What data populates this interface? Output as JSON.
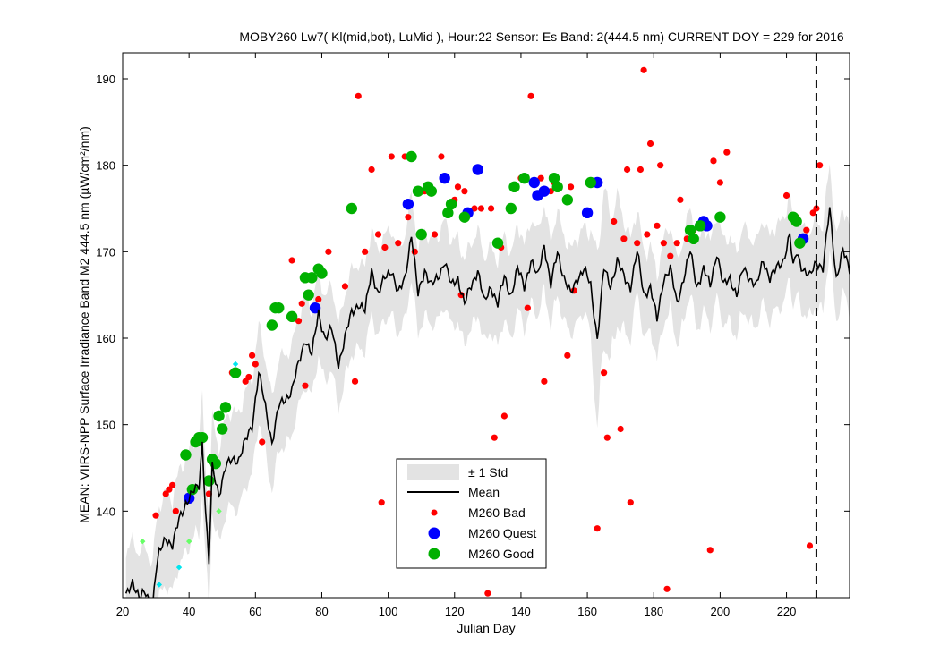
{
  "chart_data": {
    "type": "scatter",
    "title": "MOBY260   Lw7( Kl(mid,bot), LuMid ),   Hour:22 Sensor: Es Band: 2(444.5 nm)   CURRENT DOY = 229 for 2016",
    "xlabel": "Julian Day",
    "ylabel": "MEAN: VIIRS-NPP Surface Irradiance Band M2 444.5 nm (µW/cm²/nm)",
    "xlim": [
      20,
      239
    ],
    "ylim": [
      130,
      193
    ],
    "x_ticks": [
      "20",
      "40",
      "60",
      "80",
      "100",
      "120",
      "140",
      "160",
      "180",
      "200",
      "220"
    ],
    "y_ticks": [
      "140",
      "150",
      "160",
      "170",
      "180",
      "190"
    ],
    "current_doy": 229,
    "grid": false,
    "legend_position": "bottom-center",
    "legend": [
      "± 1 Std",
      "Mean",
      "M260 Bad",
      "M260 Quest",
      "M260 Good"
    ],
    "colors": {
      "band": "#e3e3e3",
      "mean": "#000000",
      "bad": "#ff0000",
      "quest": "#0000ff",
      "good": "#00b000",
      "small_green": "#66ff66",
      "small_cyan": "#00e5ee"
    },
    "mean_anchors": [
      [
        21,
        130
      ],
      [
        23,
        132
      ],
      [
        25,
        130
      ],
      [
        27,
        130.5
      ],
      [
        29,
        129
      ],
      [
        30,
        133
      ],
      [
        31,
        135
      ],
      [
        33,
        137
      ],
      [
        35,
        136
      ],
      [
        37,
        139
      ],
      [
        39,
        141
      ],
      [
        41,
        142
      ],
      [
        43,
        143
      ],
      [
        44,
        148
      ],
      [
        45,
        140
      ],
      [
        46,
        134
      ],
      [
        47,
        145
      ],
      [
        49,
        142
      ],
      [
        51,
        145
      ],
      [
        53,
        146
      ],
      [
        55,
        146
      ],
      [
        57,
        148
      ],
      [
        59,
        150
      ],
      [
        61,
        156
      ],
      [
        63,
        152
      ],
      [
        65,
        148
      ],
      [
        67,
        152
      ],
      [
        69,
        153
      ],
      [
        71,
        154
      ],
      [
        73,
        157
      ],
      [
        75,
        160
      ],
      [
        77,
        158
      ],
      [
        79,
        163
      ],
      [
        81,
        160
      ],
      [
        83,
        161
      ],
      [
        85,
        157
      ],
      [
        87,
        160
      ],
      [
        89,
        163
      ],
      [
        91,
        164
      ],
      [
        93,
        163
      ],
      [
        95,
        168
      ],
      [
        97,
        165
      ],
      [
        99,
        167
      ],
      [
        101,
        168
      ],
      [
        103,
        165
      ],
      [
        105,
        167
      ],
      [
        107,
        172
      ],
      [
        109,
        165
      ],
      [
        111,
        168
      ],
      [
        113,
        166
      ],
      [
        115,
        167
      ],
      [
        117,
        169
      ],
      [
        119,
        166
      ],
      [
        121,
        167
      ],
      [
        123,
        164
      ],
      [
        125,
        166
      ],
      [
        127,
        168
      ],
      [
        129,
        164
      ],
      [
        131,
        166
      ],
      [
        133,
        164
      ],
      [
        135,
        167
      ],
      [
        137,
        165
      ],
      [
        139,
        168
      ],
      [
        141,
        166
      ],
      [
        143,
        169
      ],
      [
        145,
        167
      ],
      [
        147,
        171
      ],
      [
        149,
        166
      ],
      [
        151,
        170
      ],
      [
        153,
        167
      ],
      [
        155,
        165
      ],
      [
        157,
        167
      ],
      [
        159,
        168
      ],
      [
        161,
        166
      ],
      [
        163,
        160
      ],
      [
        165,
        168
      ],
      [
        167,
        166
      ],
      [
        169,
        169
      ],
      [
        171,
        167
      ],
      [
        173,
        166
      ],
      [
        175,
        170
      ],
      [
        177,
        165
      ],
      [
        179,
        166
      ],
      [
        181,
        162
      ],
      [
        183,
        167
      ],
      [
        185,
        168
      ],
      [
        187,
        164
      ],
      [
        189,
        167
      ],
      [
        191,
        170
      ],
      [
        193,
        166
      ],
      [
        195,
        168
      ],
      [
        197,
        166
      ],
      [
        199,
        170
      ],
      [
        201,
        166
      ],
      [
        203,
        167
      ],
      [
        205,
        165
      ],
      [
        207,
        168
      ],
      [
        209,
        167
      ],
      [
        211,
        166
      ],
      [
        213,
        169
      ],
      [
        215,
        167
      ],
      [
        217,
        168
      ],
      [
        219,
        169
      ],
      [
        221,
        172
      ],
      [
        222,
        168
      ],
      [
        223,
        170
      ],
      [
        225,
        168
      ],
      [
        227,
        167
      ],
      [
        229,
        169
      ],
      [
        231,
        168
      ],
      [
        233,
        175
      ],
      [
        235,
        167
      ],
      [
        237,
        170
      ],
      [
        239,
        168
      ]
    ],
    "std_anchors": [
      [
        21,
        4
      ],
      [
        40,
        4.5
      ],
      [
        60,
        4.5
      ],
      [
        80,
        4
      ],
      [
        100,
        4
      ],
      [
        140,
        4
      ],
      [
        160,
        4
      ],
      [
        163,
        8
      ],
      [
        175,
        4
      ],
      [
        200,
        4
      ],
      [
        220,
        4
      ],
      [
        239,
        4
      ]
    ],
    "series": [
      {
        "name": "M260 Bad",
        "points": [
          [
            30,
            139.5
          ],
          [
            33,
            142
          ],
          [
            34,
            142.5
          ],
          [
            35,
            143
          ],
          [
            36,
            140
          ],
          [
            46,
            142
          ],
          [
            53,
            156
          ],
          [
            57,
            155
          ],
          [
            58,
            155.5
          ],
          [
            59,
            158
          ],
          [
            60,
            157
          ],
          [
            62,
            148
          ],
          [
            71,
            169
          ],
          [
            73,
            162
          ],
          [
            74,
            164
          ],
          [
            75,
            154.5
          ],
          [
            79,
            164.5
          ],
          [
            82,
            170
          ],
          [
            87,
            166
          ],
          [
            90,
            155
          ],
          [
            91,
            188
          ],
          [
            93,
            170
          ],
          [
            95,
            179.5
          ],
          [
            97,
            172
          ],
          [
            98,
            141
          ],
          [
            99,
            170.5
          ],
          [
            101,
            181
          ],
          [
            103,
            171
          ],
          [
            105,
            181
          ],
          [
            106,
            174
          ],
          [
            108,
            170
          ],
          [
            111,
            177
          ],
          [
            114,
            172
          ],
          [
            116,
            181
          ],
          [
            118,
            174.5
          ],
          [
            120,
            176
          ],
          [
            121,
            177.5
          ],
          [
            122,
            165
          ],
          [
            123,
            177
          ],
          [
            126,
            175
          ],
          [
            128,
            175
          ],
          [
            130,
            130.5
          ],
          [
            131,
            175
          ],
          [
            132,
            148.5
          ],
          [
            134,
            170.5
          ],
          [
            135,
            151
          ],
          [
            140,
            178.5
          ],
          [
            142,
            163.5
          ],
          [
            143,
            188
          ],
          [
            144,
            178
          ],
          [
            146,
            178.5
          ],
          [
            147,
            155
          ],
          [
            149,
            177
          ],
          [
            150,
            178
          ],
          [
            154,
            158
          ],
          [
            155,
            177.5
          ],
          [
            156,
            165.5
          ],
          [
            163,
            138
          ],
          [
            165,
            156
          ],
          [
            166,
            148.5
          ],
          [
            168,
            173.5
          ],
          [
            170,
            149.5
          ],
          [
            171,
            171.5
          ],
          [
            172,
            179.5
          ],
          [
            173,
            141
          ],
          [
            175,
            171
          ],
          [
            176,
            179.5
          ],
          [
            177,
            191
          ],
          [
            178,
            172
          ],
          [
            179,
            182.5
          ],
          [
            181,
            173
          ],
          [
            182,
            180
          ],
          [
            183,
            171
          ],
          [
            184,
            131
          ],
          [
            185,
            169.5
          ],
          [
            187,
            171
          ],
          [
            188,
            176
          ],
          [
            190,
            171.5
          ],
          [
            192,
            172.5
          ],
          [
            197,
            135.5
          ],
          [
            198,
            180.5
          ],
          [
            200,
            178
          ],
          [
            202,
            181.5
          ],
          [
            220,
            176.5
          ],
          [
            223,
            174
          ],
          [
            226,
            172.5
          ],
          [
            227,
            136
          ],
          [
            228,
            174.5
          ],
          [
            229,
            175
          ],
          [
            230,
            180
          ]
        ]
      },
      {
        "name": "M260 Quest",
        "points": [
          [
            40,
            141.5
          ],
          [
            78,
            163.5
          ],
          [
            106,
            175.5
          ],
          [
            117,
            178.5
          ],
          [
            124,
            174.5
          ],
          [
            127,
            179.5
          ],
          [
            144,
            178
          ],
          [
            145,
            176.5
          ],
          [
            147,
            177
          ],
          [
            160,
            174.5
          ],
          [
            163,
            178
          ],
          [
            194,
            173
          ],
          [
            195,
            173.5
          ],
          [
            196,
            173
          ],
          [
            225,
            171.5
          ]
        ]
      },
      {
        "name": "M260 Good",
        "points": [
          [
            39,
            146.5
          ],
          [
            41,
            142.5
          ],
          [
            42,
            148
          ],
          [
            43,
            148.5
          ],
          [
            44,
            148.5
          ],
          [
            46,
            143.5
          ],
          [
            47,
            146
          ],
          [
            48,
            145.5
          ],
          [
            49,
            151
          ],
          [
            50,
            149.5
          ],
          [
            51,
            152
          ],
          [
            54,
            156
          ],
          [
            65,
            161.5
          ],
          [
            66,
            163.5
          ],
          [
            67,
            163.5
          ],
          [
            71,
            162.5
          ],
          [
            75,
            167
          ],
          [
            76,
            165
          ],
          [
            77,
            167
          ],
          [
            79,
            168
          ],
          [
            80,
            167.5
          ],
          [
            89,
            175
          ],
          [
            107,
            181
          ],
          [
            109,
            177
          ],
          [
            110,
            172
          ],
          [
            112,
            177.5
          ],
          [
            113,
            177
          ],
          [
            118,
            174.5
          ],
          [
            119,
            175.5
          ],
          [
            123,
            174
          ],
          [
            133,
            171
          ],
          [
            137,
            175
          ],
          [
            138,
            177.5
          ],
          [
            141,
            178.5
          ],
          [
            150,
            178.5
          ],
          [
            151,
            177.5
          ],
          [
            154,
            176
          ],
          [
            161,
            178
          ],
          [
            191,
            172.5
          ],
          [
            192,
            171.5
          ],
          [
            194,
            173
          ],
          [
            200,
            174
          ],
          [
            222,
            174
          ],
          [
            223,
            173.5
          ],
          [
            224,
            171
          ]
        ]
      },
      {
        "name": "small_green",
        "points": [
          [
            26,
            136.5
          ],
          [
            28,
            129.5
          ],
          [
            40,
            136.5
          ],
          [
            49,
            140
          ]
        ]
      },
      {
        "name": "small_cyan",
        "points": [
          [
            31,
            131.5
          ],
          [
            37,
            133.5
          ],
          [
            54,
            157
          ]
        ]
      }
    ]
  }
}
